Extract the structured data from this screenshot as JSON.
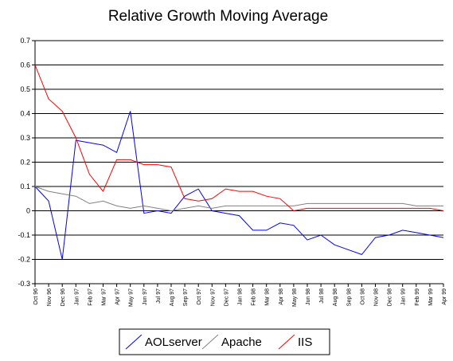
{
  "chart_data": {
    "type": "line",
    "title": "Relative Growth Moving Average",
    "xlabel": "",
    "ylabel": "",
    "ylim": [
      -0.3,
      0.7
    ],
    "yticks": [
      -0.3,
      -0.2,
      -0.1,
      0,
      0.1,
      0.2,
      0.3,
      0.4,
      0.5,
      0.6,
      0.7
    ],
    "ytick_labels": [
      "-0.3",
      "-0.2",
      "-0.1",
      "0",
      "0.1",
      "0.2",
      "0.3",
      "0.4",
      "0.5",
      "0.6",
      "0.7"
    ],
    "grid": true,
    "legend_position": "bottom",
    "categories": [
      "Oct 96",
      "Nov 96",
      "Dec 96",
      "Jan 97",
      "Feb 97",
      "Mar 97",
      "Apr 97",
      "May 97",
      "Jun 97",
      "Jul 97",
      "Aug 97",
      "Sep 97",
      "Oct 97",
      "Nov 97",
      "Dec 97",
      "Jan 98",
      "Feb 98",
      "Mar 98",
      "Apr 98",
      "May 98",
      "Jun 98",
      "Jul 98",
      "Aug 98",
      "Sep 98",
      "Oct 98",
      "Nov 98",
      "Dec 98",
      "Jan 99",
      "Feb 99",
      "Mar 99",
      "Apr 99"
    ],
    "series": [
      {
        "name": "AOLserver",
        "color": "#0000ff",
        "values": [
          0.1,
          0.04,
          -0.2,
          0.29,
          0.28,
          0.27,
          0.24,
          0.41,
          -0.01,
          0.0,
          -0.01,
          0.06,
          0.09,
          0.0,
          -0.01,
          -0.02,
          -0.08,
          -0.08,
          -0.05,
          -0.06,
          -0.12,
          -0.1,
          -0.14,
          -0.16,
          -0.18,
          -0.11,
          -0.1,
          -0.08,
          -0.09,
          -0.1,
          -0.11
        ]
      },
      {
        "name": "Apache",
        "color": "#808080",
        "values": [
          0.1,
          0.08,
          0.07,
          0.06,
          0.03,
          0.04,
          0.02,
          0.01,
          0.02,
          0.01,
          0.0,
          0.01,
          0.02,
          0.01,
          0.02,
          0.02,
          0.02,
          0.02,
          0.02,
          0.02,
          0.03,
          0.03,
          0.03,
          0.03,
          0.03,
          0.03,
          0.03,
          0.03,
          0.02,
          0.02,
          0.02
        ]
      },
      {
        "name": "IIS",
        "color": "#ff0000",
        "values": [
          0.6,
          0.46,
          0.41,
          0.3,
          0.15,
          0.08,
          0.21,
          0.21,
          0.19,
          0.19,
          0.18,
          0.05,
          0.04,
          0.05,
          0.09,
          0.08,
          0.08,
          0.06,
          0.05,
          0.0,
          0.01,
          0.01,
          0.01,
          0.01,
          0.01,
          0.01,
          0.01,
          0.01,
          0.01,
          0.01,
          0.0
        ]
      }
    ]
  }
}
